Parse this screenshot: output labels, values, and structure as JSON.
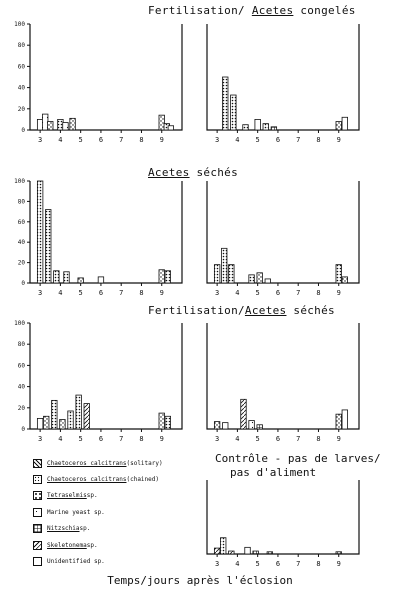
{
  "titles": {
    "row1_pre": "Fertilisation/ ",
    "row1_u": "Acetes",
    "row1_post": " congelés",
    "row2_u": "Acetes",
    "row2_post": " séchés",
    "row3_pre": "Fertilisation/",
    "row3_u": "Acetes",
    "row3_post": " séchés",
    "control_line1": "Contrôle - pas de larves/",
    "control_line2": "pas d'aliment"
  },
  "footer": "Temps/jours après l'éclosion",
  "legend": [
    {
      "name_u": "Chaetoceros calcitrans",
      "suffix": " (solitary)",
      "pattern": "p-solitary"
    },
    {
      "name_u": "Chaetoceros calcitrans",
      "suffix": " (chained)",
      "pattern": "p-chained"
    },
    {
      "name_u": "Tetraselmis",
      "suffix": " sp.",
      "pattern": "p-tetra"
    },
    {
      "name_u": "",
      "suffix": "Marine yeast sp.",
      "pattern": "p-yeast"
    },
    {
      "name_u": "Nitzschia",
      "suffix": " sp.",
      "pattern": "p-nitz"
    },
    {
      "name_u": "Skeletonema",
      "suffix": " sp.",
      "pattern": "p-skel"
    },
    {
      "name_u": "",
      "suffix": "Unidentified sp.",
      "pattern": "p-unid"
    }
  ],
  "chart_data": [
    {
      "type": "bar",
      "panel": "row1-left",
      "x": [
        3,
        4,
        5,
        6,
        7,
        8,
        9
      ],
      "ylim": [
        0,
        100
      ],
      "yticks": [
        0,
        20,
        40,
        60,
        80,
        100
      ],
      "bars": [
        {
          "x": 3,
          "series": "Unidentified sp.",
          "value": 10
        },
        {
          "x": 3.25,
          "series": "Marine yeast sp.",
          "value": 15
        },
        {
          "x": 3.5,
          "series": "Tetraselmis sp.",
          "value": 8
        },
        {
          "x": 4,
          "series": "Chaetoceros calcitrans (chained)",
          "value": 10
        },
        {
          "x": 4.25,
          "series": "Marine yeast sp.",
          "value": 7
        },
        {
          "x": 4.6,
          "series": "Tetraselmis sp.",
          "value": 11
        },
        {
          "x": 9,
          "series": "Tetraselmis sp.",
          "value": 14
        },
        {
          "x": 9.25,
          "series": "Chaetoceros calcitrans (chained)",
          "value": 6
        },
        {
          "x": 9.45,
          "series": "Unidentified sp.",
          "value": 4
        }
      ]
    },
    {
      "type": "bar",
      "panel": "row1-right",
      "x": [
        3,
        4,
        5,
        6,
        7,
        8,
        9
      ],
      "ylim": [
        0,
        100
      ],
      "bars": [
        {
          "x": 3.4,
          "series": "Chaetoceros calcitrans (chained)",
          "value": 50
        },
        {
          "x": 3.8,
          "series": "Chaetoceros calcitrans (chained)",
          "value": 33
        },
        {
          "x": 4.4,
          "series": "Chaetoceros calcitrans (chained)",
          "value": 5
        },
        {
          "x": 5,
          "series": "Unidentified sp.",
          "value": 10
        },
        {
          "x": 5.4,
          "series": "Chaetoceros calcitrans (chained)",
          "value": 6
        },
        {
          "x": 5.8,
          "series": "Nitzschia sp.",
          "value": 3
        },
        {
          "x": 9,
          "series": "Tetraselmis sp.",
          "value": 8
        },
        {
          "x": 9.3,
          "series": "Unidentified sp.",
          "value": 12
        }
      ]
    },
    {
      "type": "bar",
      "panel": "row2-left",
      "x": [
        3,
        4,
        5,
        6,
        7,
        8,
        9
      ],
      "ylim": [
        0,
        100
      ],
      "yticks": [
        0,
        20,
        40,
        60,
        80,
        100
      ],
      "bars": [
        {
          "x": 3,
          "series": "Chaetoceros calcitrans (chained)",
          "value": 100
        },
        {
          "x": 3.4,
          "series": "Chaetoceros calcitrans (chained)",
          "value": 72
        },
        {
          "x": 3.8,
          "series": "Chaetoceros calcitrans (chained)",
          "value": 12
        },
        {
          "x": 4.3,
          "series": "Chaetoceros calcitrans (chained)",
          "value": 11
        },
        {
          "x": 5,
          "series": "Tetraselmis sp.",
          "value": 5
        },
        {
          "x": 6,
          "series": "Unidentified sp.",
          "value": 6
        },
        {
          "x": 9,
          "series": "Tetraselmis sp.",
          "value": 13
        },
        {
          "x": 9.3,
          "series": "Chaetoceros calcitrans (chained)",
          "value": 12
        }
      ]
    },
    {
      "type": "bar",
      "panel": "row2-right",
      "x": [
        3,
        4,
        5,
        6,
        7,
        8,
        9
      ],
      "ylim": [
        0,
        100
      ],
      "bars": [
        {
          "x": 3,
          "series": "Chaetoceros calcitrans (chained)",
          "value": 18
        },
        {
          "x": 3.35,
          "series": "Chaetoceros calcitrans (chained)",
          "value": 34
        },
        {
          "x": 3.7,
          "series": "Chaetoceros calcitrans (chained)",
          "value": 18
        },
        {
          "x": 4.7,
          "series": "Chaetoceros calcitrans (chained)",
          "value": 8
        },
        {
          "x": 5.1,
          "series": "Tetraselmis sp.",
          "value": 10
        },
        {
          "x": 5.5,
          "series": "Unidentified sp.",
          "value": 4
        },
        {
          "x": 9,
          "series": "Chaetoceros calcitrans (chained)",
          "value": 18
        },
        {
          "x": 9.3,
          "series": "Tetraselmis sp.",
          "value": 6
        }
      ]
    },
    {
      "type": "bar",
      "panel": "row3-left",
      "x": [
        3,
        4,
        5,
        6,
        7,
        8,
        9
      ],
      "ylim": [
        0,
        100
      ],
      "yticks": [
        0,
        20,
        40,
        60,
        80,
        100
      ],
      "bars": [
        {
          "x": 3,
          "series": "Unidentified sp.",
          "value": 10
        },
        {
          "x": 3.3,
          "series": "Tetraselmis sp.",
          "value": 12
        },
        {
          "x": 3.7,
          "series": "Chaetoceros calcitrans (chained)",
          "value": 27
        },
        {
          "x": 4.1,
          "series": "Tetraselmis sp.",
          "value": 9
        },
        {
          "x": 4.5,
          "series": "Chaetoceros calcitrans (chained)",
          "value": 17
        },
        {
          "x": 4.9,
          "series": "Chaetoceros calcitrans (chained)",
          "value": 32
        },
        {
          "x": 5.3,
          "series": "Skeletonema sp.",
          "value": 24
        },
        {
          "x": 9,
          "series": "Tetraselmis sp.",
          "value": 15
        },
        {
          "x": 9.3,
          "series": "Chaetoceros calcitrans (chained)",
          "value": 12
        }
      ]
    },
    {
      "type": "bar",
      "panel": "row3-right",
      "x": [
        3,
        4,
        5,
        6,
        7,
        8,
        9
      ],
      "ylim": [
        0,
        100
      ],
      "bars": [
        {
          "x": 3,
          "series": "Tetraselmis sp.",
          "value": 7
        },
        {
          "x": 3.4,
          "series": "Unidentified sp.",
          "value": 6
        },
        {
          "x": 4.3,
          "series": "Skeletonema sp.",
          "value": 28
        },
        {
          "x": 4.7,
          "series": "Marine yeast sp.",
          "value": 8
        },
        {
          "x": 5.1,
          "series": "Nitzschia sp.",
          "value": 4
        },
        {
          "x": 9,
          "series": "Tetraselmis sp.",
          "value": 14
        },
        {
          "x": 9.3,
          "series": "Unidentified sp.",
          "value": 18
        }
      ]
    },
    {
      "type": "bar",
      "panel": "row4-right",
      "x": [
        3,
        4,
        5,
        6,
        7,
        8,
        9
      ],
      "ylim": [
        0,
        100
      ],
      "bars": [
        {
          "x": 3,
          "series": "Skeletonema sp.",
          "value": 8
        },
        {
          "x": 3.3,
          "series": "Chaetoceros calcitrans (chained)",
          "value": 22
        },
        {
          "x": 3.7,
          "series": "Skeletonema sp.",
          "value": 4
        },
        {
          "x": 4.5,
          "series": "Unidentified sp.",
          "value": 9
        },
        {
          "x": 4.9,
          "series": "Nitzschia sp.",
          "value": 4
        },
        {
          "x": 5.6,
          "series": "Nitzschia sp.",
          "value": 3
        },
        {
          "x": 9,
          "series": "Nitzschia sp.",
          "value": 3
        }
      ]
    }
  ],
  "colors": {
    "ink": "#111111",
    "background": "#ffffff"
  }
}
